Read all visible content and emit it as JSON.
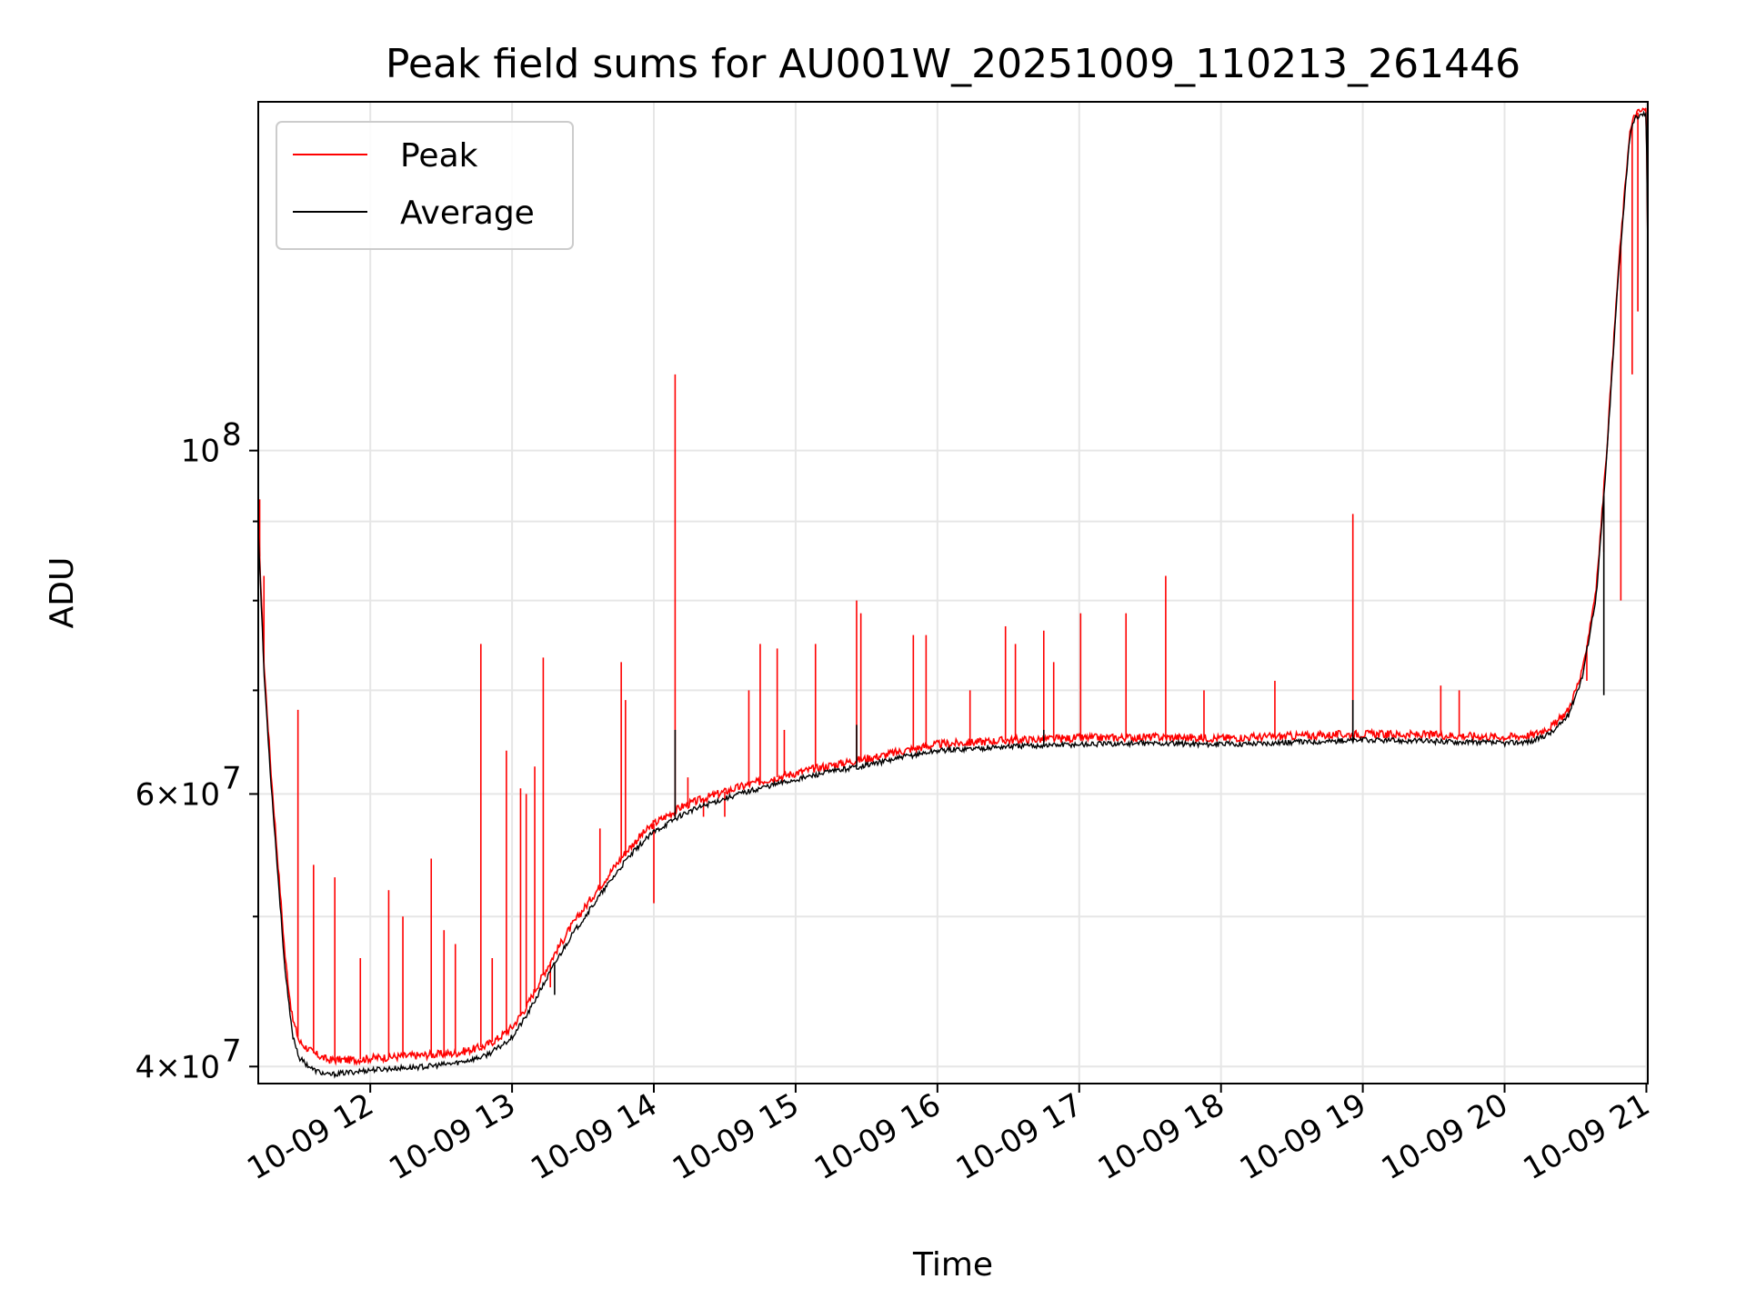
{
  "chart_data": {
    "type": "line",
    "title": "Peak field sums for AU001W_20251009_110213_261446",
    "xlabel": "Time",
    "ylabel": "ADU",
    "yscale": "log",
    "ylim": [
      39000000,
      168000000
    ],
    "xlim": [
      11.21,
      21.01
    ],
    "grid": true,
    "legend_position": "upper left",
    "x_ticks": [
      {
        "value": 12,
        "label": "10-09 12"
      },
      {
        "value": 13,
        "label": "10-09 13"
      },
      {
        "value": 14,
        "label": "10-09 14"
      },
      {
        "value": 15,
        "label": "10-09 15"
      },
      {
        "value": 16,
        "label": "10-09 16"
      },
      {
        "value": 17,
        "label": "10-09 17"
      },
      {
        "value": 18,
        "label": "10-09 18"
      },
      {
        "value": 19,
        "label": "10-09 19"
      },
      {
        "value": 20,
        "label": "10-09 20"
      },
      {
        "value": 21,
        "label": "10-09 21"
      }
    ],
    "y_major_ticks": [
      {
        "value": 100000000,
        "label_base": "10",
        "label_exp": "8"
      },
      {
        "value": 60000000,
        "label_base": "6×10",
        "label_exp": "7"
      },
      {
        "value": 40000000,
        "label_base": "4×10",
        "label_exp": "7"
      }
    ],
    "y_minor_ticks": [
      50000000,
      70000000,
      80000000,
      90000000
    ],
    "series": [
      {
        "name": "Peak",
        "color": "#ff0000",
        "x": [
          11.21,
          11.25,
          11.3,
          11.35,
          11.4,
          11.45,
          11.5,
          11.6,
          11.7,
          11.8,
          11.9,
          12.0,
          12.2,
          12.4,
          12.6,
          12.8,
          12.9,
          13.0,
          13.1,
          13.2,
          13.3,
          13.4,
          13.5,
          13.6,
          13.7,
          13.8,
          13.9,
          14.0,
          14.2,
          14.4,
          14.6,
          14.8,
          15.0,
          15.2,
          15.4,
          15.6,
          15.8,
          16.0,
          16.5,
          17.0,
          17.5,
          18.0,
          18.5,
          19.0,
          19.5,
          19.8,
          20.0,
          20.2,
          20.35,
          20.45,
          20.55,
          20.65,
          20.72,
          20.8,
          20.88,
          20.92,
          20.98,
          21.0,
          21.01
        ],
        "y": [
          90000000,
          73000000,
          62000000,
          54000000,
          47000000,
          43000000,
          41500000,
          40800000,
          40400000,
          40400000,
          40400000,
          40500000,
          40600000,
          40700000,
          40800000,
          41200000,
          41700000,
          42400000,
          43700000,
          45500000,
          47300000,
          49000000,
          50500000,
          52000000,
          53500000,
          55000000,
          56300000,
          57400000,
          58900000,
          59800000,
          60600000,
          61300000,
          61900000,
          62500000,
          63000000,
          63500000,
          64100000,
          64600000,
          65000000,
          65200000,
          65300000,
          65200000,
          65400000,
          65600000,
          65500000,
          65400000,
          65300000,
          65500000,
          66500000,
          68000000,
          72000000,
          82000000,
          100000000,
          130000000,
          160000000,
          165000000,
          166000000,
          166000000,
          136000000
        ],
        "spikes": [
          {
            "x": 11.22,
            "y": 93000000
          },
          {
            "x": 11.25,
            "y": 83000000
          },
          {
            "x": 11.49,
            "y": 68000000
          },
          {
            "x": 11.6,
            "y": 54000000
          },
          {
            "x": 11.75,
            "y": 53000000
          },
          {
            "x": 11.93,
            "y": 47000000
          },
          {
            "x": 12.13,
            "y": 52000000
          },
          {
            "x": 12.23,
            "y": 50000000
          },
          {
            "x": 12.43,
            "y": 54500000
          },
          {
            "x": 12.52,
            "y": 49000000
          },
          {
            "x": 12.6,
            "y": 48000000
          },
          {
            "x": 12.78,
            "y": 75000000
          },
          {
            "x": 12.86,
            "y": 47000000
          },
          {
            "x": 12.96,
            "y": 64000000
          },
          {
            "x": 13.06,
            "y": 60500000
          },
          {
            "x": 13.1,
            "y": 60000000
          },
          {
            "x": 13.16,
            "y": 62500000
          },
          {
            "x": 13.22,
            "y": 73500000
          },
          {
            "x": 13.27,
            "y": 45000000
          },
          {
            "x": 13.62,
            "y": 57000000
          },
          {
            "x": 13.77,
            "y": 73000000
          },
          {
            "x": 13.8,
            "y": 69000000
          },
          {
            "x": 14.0,
            "y": 51000000
          },
          {
            "x": 14.15,
            "y": 112000000
          },
          {
            "x": 14.24,
            "y": 61500000
          },
          {
            "x": 14.35,
            "y": 58000000
          },
          {
            "x": 14.5,
            "y": 58000000
          },
          {
            "x": 14.67,
            "y": 70000000
          },
          {
            "x": 14.75,
            "y": 75000000
          },
          {
            "x": 14.87,
            "y": 74500000
          },
          {
            "x": 14.92,
            "y": 66000000
          },
          {
            "x": 15.14,
            "y": 75000000
          },
          {
            "x": 15.43,
            "y": 80000000
          },
          {
            "x": 15.46,
            "y": 78500000
          },
          {
            "x": 15.83,
            "y": 76000000
          },
          {
            "x": 15.92,
            "y": 76000000
          },
          {
            "x": 16.23,
            "y": 70000000
          },
          {
            "x": 16.48,
            "y": 77000000
          },
          {
            "x": 16.55,
            "y": 75000000
          },
          {
            "x": 16.75,
            "y": 76500000
          },
          {
            "x": 16.82,
            "y": 73000000
          },
          {
            "x": 17.01,
            "y": 78500000
          },
          {
            "x": 17.33,
            "y": 78500000
          },
          {
            "x": 17.61,
            "y": 83000000
          },
          {
            "x": 17.88,
            "y": 70000000
          },
          {
            "x": 18.38,
            "y": 71000000
          },
          {
            "x": 18.93,
            "y": 91000000
          },
          {
            "x": 19.55,
            "y": 70500000
          },
          {
            "x": 19.68,
            "y": 70000000
          },
          {
            "x": 20.58,
            "y": 71000000
          },
          {
            "x": 20.7,
            "y": 86000000
          },
          {
            "x": 20.82,
            "y": 80000000
          },
          {
            "x": 20.9,
            "y": 112000000
          },
          {
            "x": 20.94,
            "y": 123000000
          }
        ]
      },
      {
        "name": "Average",
        "color": "#000000",
        "x": [
          11.21,
          11.25,
          11.3,
          11.35,
          11.4,
          11.45,
          11.5,
          11.6,
          11.7,
          11.8,
          11.9,
          12.0,
          12.2,
          12.4,
          12.6,
          12.8,
          12.9,
          13.0,
          13.1,
          13.2,
          13.3,
          13.4,
          13.5,
          13.6,
          13.7,
          13.8,
          13.9,
          14.0,
          14.2,
          14.4,
          14.6,
          14.8,
          15.0,
          15.2,
          15.4,
          15.6,
          15.8,
          16.0,
          16.5,
          17.0,
          17.5,
          18.0,
          18.5,
          19.0,
          19.5,
          19.8,
          20.0,
          20.2,
          20.35,
          20.45,
          20.55,
          20.65,
          20.72,
          20.8,
          20.88,
          20.92,
          20.98,
          21.0,
          21.01
        ],
        "y": [
          89000000,
          72000000,
          61000000,
          53000000,
          46000000,
          42000000,
          40500000,
          39800000,
          39500000,
          39600000,
          39700000,
          39800000,
          39900000,
          40000000,
          40200000,
          40600000,
          41100000,
          41800000,
          43100000,
          44800000,
          46600000,
          48300000,
          49800000,
          51300000,
          52800000,
          54300000,
          55600000,
          56700000,
          58200000,
          59200000,
          60000000,
          60700000,
          61300000,
          61900000,
          62400000,
          62900000,
          63500000,
          64000000,
          64400000,
          64600000,
          64700000,
          64600000,
          64800000,
          65000000,
          64900000,
          64800000,
          64700000,
          64900000,
          65900000,
          67500000,
          71500000,
          81000000,
          99000000,
          129000000,
          159000000,
          164000000,
          165000000,
          165000000,
          133000000
        ],
        "spikes": [
          {
            "x": 13.3,
            "y": 44500000
          },
          {
            "x": 14.15,
            "y": 66000000
          },
          {
            "x": 15.43,
            "y": 66500000
          },
          {
            "x": 16.75,
            "y": 66000000
          },
          {
            "x": 18.93,
            "y": 69000000
          },
          {
            "x": 20.7,
            "y": 69500000
          }
        ]
      }
    ]
  }
}
